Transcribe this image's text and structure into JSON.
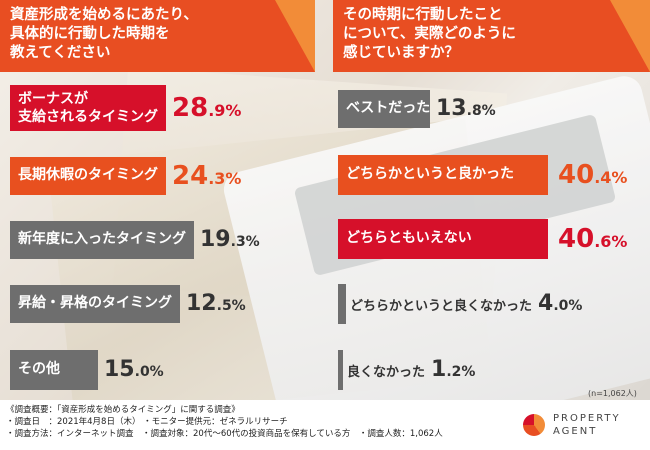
{
  "left": {
    "title": [
      "資産形成を始めるにあたり、",
      "具体的に行動した時期を",
      "教えてください"
    ],
    "items": [
      {
        "label": [
          "ボーナスが",
          "支給されるタイミング"
        ],
        "int": "28",
        "dec": ".9%"
      },
      {
        "label": [
          "長期休暇のタイミング"
        ],
        "int": "24",
        "dec": ".3%"
      },
      {
        "label": [
          "新年度に入ったタイミング"
        ],
        "int": "19",
        "dec": ".3%"
      },
      {
        "label": [
          "昇給・昇格のタイミング"
        ],
        "int": "12",
        "dec": ".5%"
      },
      {
        "label": [
          "その他"
        ],
        "int": "15",
        "dec": ".0%"
      }
    ]
  },
  "right": {
    "title": [
      "その時期に行動したこと",
      "について、実際どのように",
      "感じていますか？"
    ],
    "items": [
      {
        "label": "ベストだった",
        "int": "13",
        "dec": ".8%"
      },
      {
        "label": "どちらかというと良かった",
        "int": "40",
        "dec": ".4%"
      },
      {
        "label": "どちらともいえない",
        "int": "40",
        "dec": ".6%"
      },
      {
        "label": "どちらかというと良くなかった",
        "int": "4",
        "dec": ".0%"
      },
      {
        "label": "良くなかった",
        "int": "1",
        "dec": ".2%"
      }
    ]
  },
  "note": "(n=1,062人)",
  "footer": {
    "line1": "《調査概要：「資産形成を始めるタイミング」に関する調査》",
    "line2": "・調査日　：2021年4月8日（木） ・モニター提供元：ゼネラルリサーチ",
    "line3": "・調査方法：インターネット調査　・調査対象：20代〜60代の投資商品を保有している方　・調査人数：1,062人"
  },
  "logo": {
    "line1": "PROPERTY",
    "line2": "AGENT"
  },
  "chart_data": [
    {
      "type": "bar",
      "title": "資産形成を始めるにあたり、具体的に行動した時期を教えてください",
      "categories": [
        "ボーナスが支給されるタイミング",
        "長期休暇のタイミング",
        "新年度に入ったタイミング",
        "昇給・昇格のタイミング",
        "その他"
      ],
      "values": [
        28.9,
        24.3,
        19.3,
        12.5,
        15.0
      ]
    },
    {
      "type": "bar",
      "title": "その時期に行動したことについて、実際どのように感じていますか？",
      "categories": [
        "ベストだった",
        "どちらかというと良かった",
        "どちらともいえない",
        "どちらかというと良くなかった",
        "良くなかった"
      ],
      "values": [
        13.8,
        40.4,
        40.6,
        4.0,
        1.2
      ]
    }
  ]
}
